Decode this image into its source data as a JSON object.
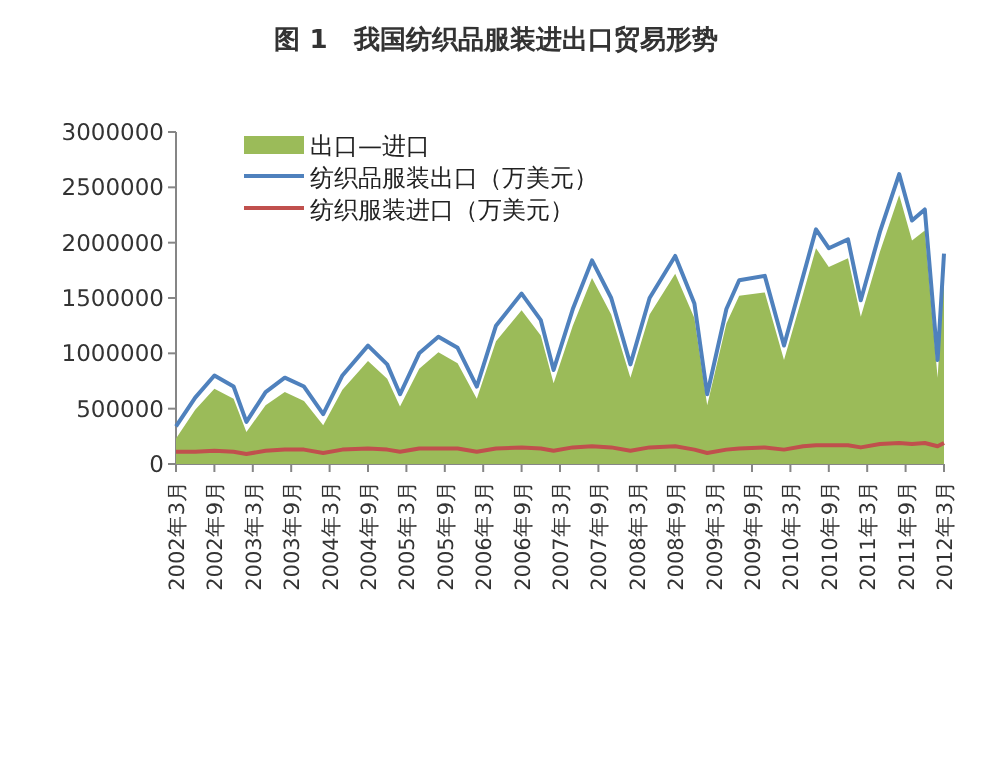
{
  "chart_data": {
    "type": "line",
    "title": "图 1　我国纺织品服装进出口贸易形势",
    "x": [
      "2002-03",
      "2002-06",
      "2002-09",
      "2002-12",
      "2003-02",
      "2003-05",
      "2003-08",
      "2003-11",
      "2004-02",
      "2004-05",
      "2004-09",
      "2004-12",
      "2005-02",
      "2005-05",
      "2005-08",
      "2005-11",
      "2006-02",
      "2006-05",
      "2006-09",
      "2006-12",
      "2007-02",
      "2007-05",
      "2007-08",
      "2007-11",
      "2008-02",
      "2008-05",
      "2008-09",
      "2008-12",
      "2009-02",
      "2009-05",
      "2009-07",
      "2009-11",
      "2010-02",
      "2010-05",
      "2010-07",
      "2010-09",
      "2010-12",
      "2011-02",
      "2011-05",
      "2011-08",
      "2011-10",
      "2011-12",
      "2012-02",
      "2012-03"
    ],
    "series": [
      {
        "name": "出口—进口",
        "type": "area",
        "color": "#9bbb59",
        "values": [
          230000,
          490000,
          680000,
          590000,
          290000,
          530000,
          650000,
          570000,
          350000,
          670000,
          930000,
          770000,
          520000,
          860000,
          1010000,
          910000,
          590000,
          1110000,
          1390000,
          1160000,
          730000,
          1250000,
          1680000,
          1350000,
          780000,
          1350000,
          1720000,
          1320000,
          530000,
          1270000,
          1520000,
          1550000,
          940000,
          1540000,
          1950000,
          1780000,
          1860000,
          1330000,
          1920000,
          2430000,
          2020000,
          2110000,
          780000,
          1710000
        ]
      },
      {
        "name": "纺织品服装出口（万美元）",
        "color": "#4f81bd",
        "values": [
          340000,
          600000,
          800000,
          700000,
          380000,
          650000,
          780000,
          700000,
          450000,
          800000,
          1070000,
          900000,
          630000,
          1000000,
          1150000,
          1050000,
          700000,
          1250000,
          1540000,
          1300000,
          850000,
          1400000,
          1840000,
          1500000,
          900000,
          1500000,
          1880000,
          1450000,
          630000,
          1400000,
          1660000,
          1700000,
          1070000,
          1700000,
          2120000,
          1950000,
          2030000,
          1480000,
          2100000,
          2620000,
          2200000,
          2300000,
          940000,
          1900000
        ]
      },
      {
        "name": "纺织服装进口（万美元）",
        "color": "#c0504d",
        "values": [
          110000,
          110000,
          120000,
          110000,
          90000,
          120000,
          130000,
          130000,
          100000,
          130000,
          140000,
          130000,
          110000,
          140000,
          140000,
          140000,
          110000,
          140000,
          150000,
          140000,
          120000,
          150000,
          160000,
          150000,
          120000,
          150000,
          160000,
          130000,
          100000,
          130000,
          140000,
          150000,
          130000,
          160000,
          170000,
          170000,
          170000,
          150000,
          180000,
          190000,
          180000,
          190000,
          160000,
          190000
        ]
      }
    ],
    "xlim": [
      "2002-03",
      "2012-03"
    ],
    "xticks": [
      {
        "value": "2002-03",
        "label": "2002年3月"
      },
      {
        "value": "2002-09",
        "label": "2002年9月"
      },
      {
        "value": "2003-03",
        "label": "2003年3月"
      },
      {
        "value": "2003-09",
        "label": "2003年9月"
      },
      {
        "value": "2004-03",
        "label": "2004年3月"
      },
      {
        "value": "2004-09",
        "label": "2004年9月"
      },
      {
        "value": "2005-03",
        "label": "2005年3月"
      },
      {
        "value": "2005-09",
        "label": "2005年9月"
      },
      {
        "value": "2006-03",
        "label": "2006年3月"
      },
      {
        "value": "2006-09",
        "label": "2006年9月"
      },
      {
        "value": "2007-03",
        "label": "2007年3月"
      },
      {
        "value": "2007-09",
        "label": "2007年9月"
      },
      {
        "value": "2008-03",
        "label": "2008年3月"
      },
      {
        "value": "2008-09",
        "label": "2008年9月"
      },
      {
        "value": "2009-03",
        "label": "2009年3月"
      },
      {
        "value": "2009-09",
        "label": "2009年9月"
      },
      {
        "value": "2010-03",
        "label": "2010年3月"
      },
      {
        "value": "2010-09",
        "label": "2010年9月"
      },
      {
        "value": "2011-03",
        "label": "2011年3月"
      },
      {
        "value": "2011-09",
        "label": "2011年9月"
      },
      {
        "value": "2012-03",
        "label": "2012年3月"
      }
    ],
    "ylim": [
      0,
      3000000
    ],
    "yticks": [
      0,
      500000,
      1000000,
      1500000,
      2000000,
      2500000,
      3000000
    ],
    "legend": "top left"
  }
}
